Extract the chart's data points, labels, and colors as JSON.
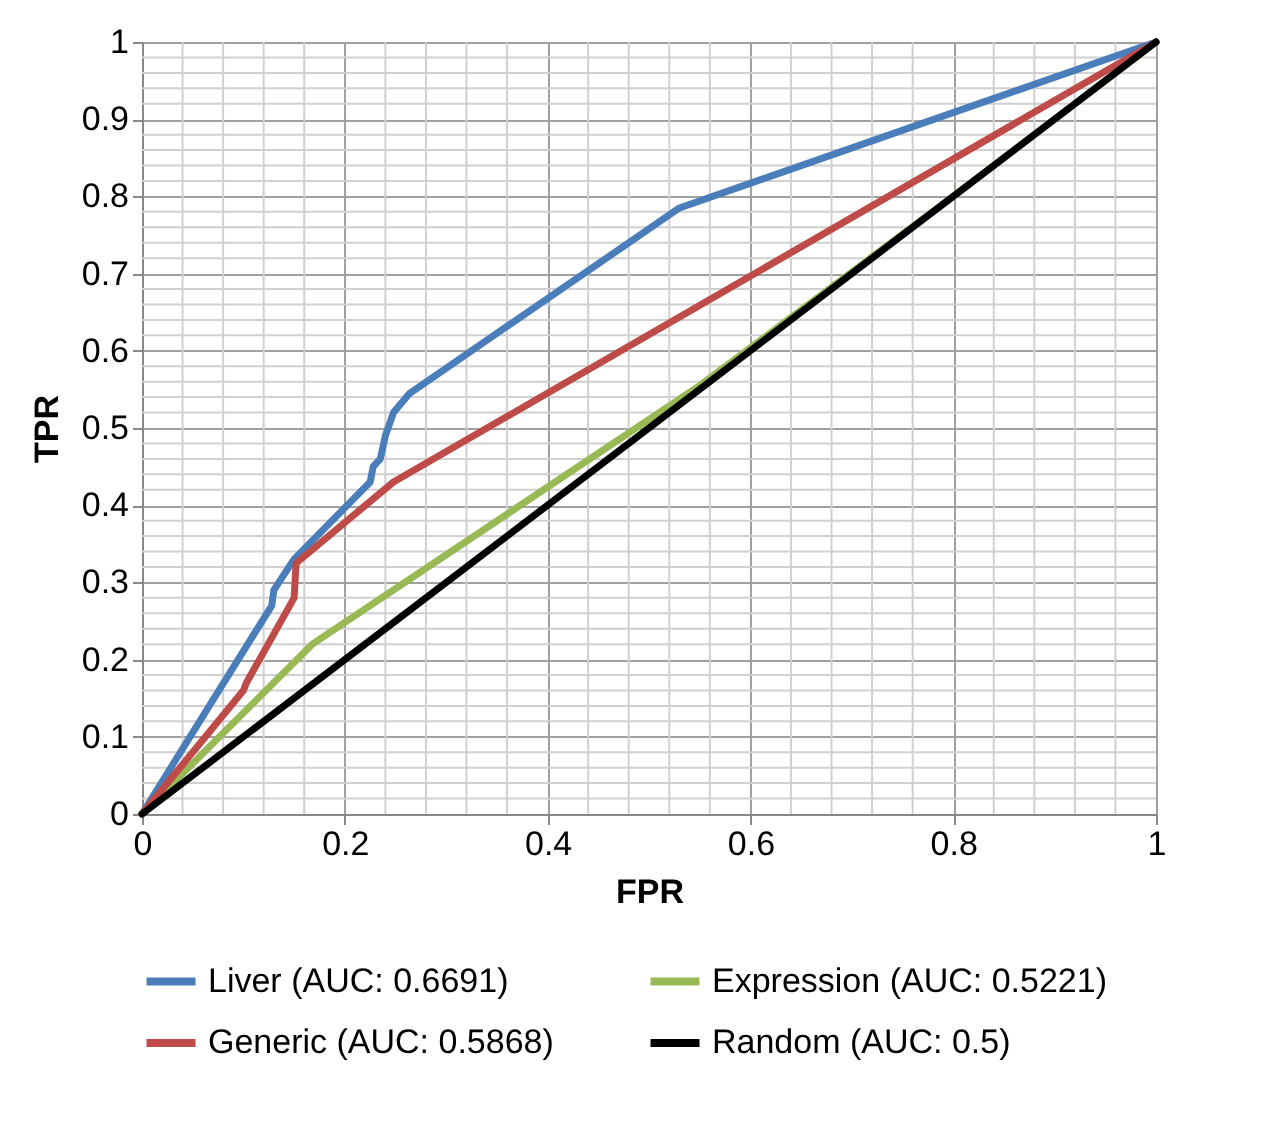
{
  "chart_data": {
    "type": "line",
    "xlabel": "FPR",
    "ylabel": "TPR",
    "xlim": [
      0,
      1
    ],
    "ylim": [
      0,
      1
    ],
    "xticks": [
      0,
      0.2,
      0.4,
      0.6,
      0.8,
      1
    ],
    "yticks": [
      0,
      0.1,
      0.2,
      0.3,
      0.4,
      0.5,
      0.6,
      0.7,
      0.8,
      0.9,
      1
    ],
    "grid": true,
    "legend": "bottom",
    "marker": "none",
    "line_style": "solid",
    "series": [
      {
        "name": "Liver (AUC: 0.6691)",
        "color": "#4a7ebb",
        "x": [
          0,
          0.128,
          0.13,
          0.15,
          0.225,
          0.228,
          0.235,
          0.24,
          0.248,
          0.264,
          0.53,
          1
        ],
        "values": [
          0,
          0.27,
          0.29,
          0.33,
          0.43,
          0.45,
          0.46,
          0.49,
          0.52,
          0.545,
          0.785,
          1
        ]
      },
      {
        "name": "Expression (AUC: 0.5221)",
        "color": "#98b954",
        "x": [
          0,
          0.168,
          0.55,
          0.8,
          1
        ],
        "values": [
          0,
          0.22,
          0.555,
          0.8,
          1
        ]
      },
      {
        "name": "Generic (AUC: 0.5868)",
        "color": "#be4b48",
        "x": [
          0,
          0.1,
          0.103,
          0.15,
          0.152,
          0.248,
          1
        ],
        "values": [
          0,
          0.16,
          0.17,
          0.28,
          0.325,
          0.43,
          1
        ]
      },
      {
        "name": "Random (AUC: 0.5)",
        "color": "#000000",
        "x": [
          0,
          1
        ],
        "values": [
          0,
          1
        ]
      }
    ]
  }
}
